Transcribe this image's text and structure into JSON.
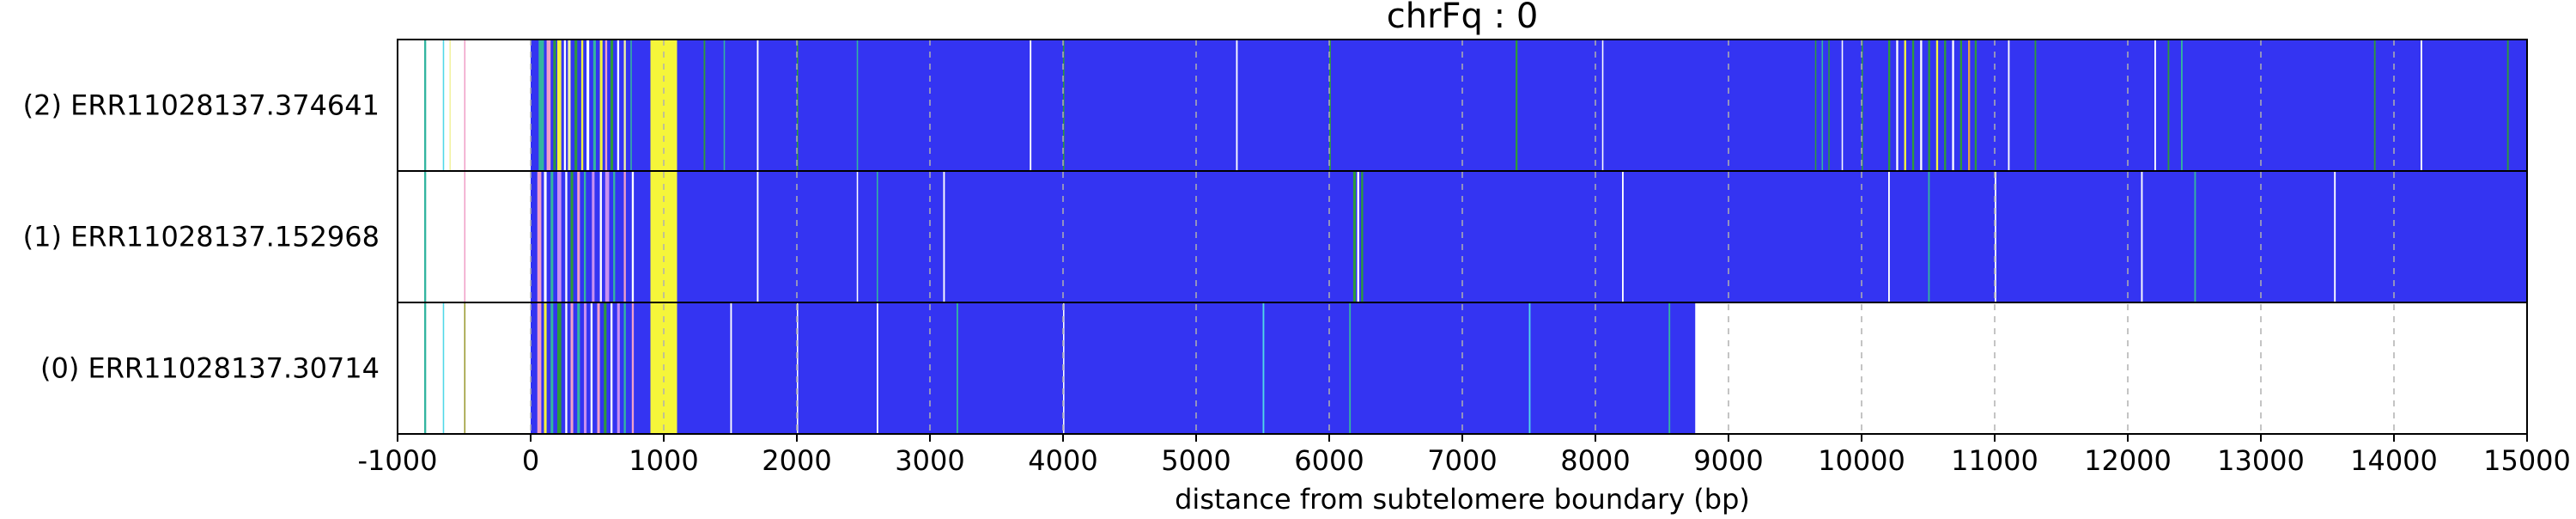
{
  "chart_data": {
    "type": "heatmap",
    "title": "chrFq : 0",
    "xlabel": "distance from subtelomere boundary (bp)",
    "ylabel": "",
    "xlim": [
      -1000,
      15000
    ],
    "xticks": [
      -1000,
      0,
      1000,
      2000,
      3000,
      4000,
      5000,
      6000,
      7000,
      8000,
      9000,
      10000,
      11000,
      12000,
      13000,
      14000,
      15000
    ],
    "vertical_gridlines": true,
    "colors": {
      "main": "#3434f2",
      "main_dark": "#2b2bd0",
      "white": "#ffffff",
      "yellow": "#f5f53a",
      "light_yellow": "#f2f2a0",
      "green": "#2e9a3a",
      "teal": "#33b5a0",
      "cyan": "#4fd8e8",
      "pink": "#f0a0c8",
      "violet": "#c890f0",
      "orange": "#e8a040",
      "olive": "#9a9a30",
      "grid": "#b0b0b0"
    },
    "reads": [
      {
        "label": "(2) ERR11028137.374641",
        "start": 0,
        "end": 15000,
        "segments": [
          {
            "start": -800,
            "end": -785,
            "color": "teal"
          },
          {
            "start": -660,
            "end": -650,
            "color": "cyan"
          },
          {
            "start": -610,
            "end": -600,
            "color": "light_yellow"
          },
          {
            "start": -500,
            "end": -490,
            "color": "pink"
          },
          {
            "start": 60,
            "end": 100,
            "color": "teal"
          },
          {
            "start": 120,
            "end": 150,
            "color": "pink"
          },
          {
            "start": 170,
            "end": 190,
            "color": "green"
          },
          {
            "start": 200,
            "end": 230,
            "color": "yellow"
          },
          {
            "start": 250,
            "end": 265,
            "color": "white"
          },
          {
            "start": 280,
            "end": 300,
            "color": "light_yellow"
          },
          {
            "start": 330,
            "end": 350,
            "color": "green"
          },
          {
            "start": 380,
            "end": 395,
            "color": "yellow"
          },
          {
            "start": 420,
            "end": 440,
            "color": "white"
          },
          {
            "start": 470,
            "end": 490,
            "color": "teal"
          },
          {
            "start": 520,
            "end": 540,
            "color": "yellow"
          },
          {
            "start": 560,
            "end": 575,
            "color": "pink"
          },
          {
            "start": 600,
            "end": 620,
            "color": "green"
          },
          {
            "start": 650,
            "end": 665,
            "color": "white"
          },
          {
            "start": 700,
            "end": 715,
            "color": "light_yellow"
          },
          {
            "start": 750,
            "end": 760,
            "color": "teal"
          },
          {
            "start": 900,
            "end": 1100,
            "color": "yellow"
          },
          {
            "start": 1300,
            "end": 1312,
            "color": "green"
          },
          {
            "start": 1450,
            "end": 1460,
            "color": "teal"
          },
          {
            "start": 1700,
            "end": 1712,
            "color": "white"
          },
          {
            "start": 2000,
            "end": 2010,
            "color": "green"
          },
          {
            "start": 2450,
            "end": 2460,
            "color": "teal"
          },
          {
            "start": 3750,
            "end": 3762,
            "color": "white"
          },
          {
            "start": 4000,
            "end": 4010,
            "color": "green"
          },
          {
            "start": 5300,
            "end": 5312,
            "color": "white"
          },
          {
            "start": 6000,
            "end": 6012,
            "color": "green"
          },
          {
            "start": 7400,
            "end": 7415,
            "color": "green"
          },
          {
            "start": 8050,
            "end": 8060,
            "color": "white"
          },
          {
            "start": 9650,
            "end": 9660,
            "color": "green"
          },
          {
            "start": 9700,
            "end": 9710,
            "color": "teal"
          },
          {
            "start": 9750,
            "end": 9760,
            "color": "green"
          },
          {
            "start": 9850,
            "end": 9860,
            "color": "white"
          },
          {
            "start": 10000,
            "end": 10010,
            "color": "green"
          },
          {
            "start": 10200,
            "end": 10215,
            "color": "green"
          },
          {
            "start": 10260,
            "end": 10275,
            "color": "white"
          },
          {
            "start": 10320,
            "end": 10335,
            "color": "yellow"
          },
          {
            "start": 10380,
            "end": 10395,
            "color": "green"
          },
          {
            "start": 10440,
            "end": 10455,
            "color": "white"
          },
          {
            "start": 10500,
            "end": 10515,
            "color": "green"
          },
          {
            "start": 10560,
            "end": 10575,
            "color": "yellow"
          },
          {
            "start": 10620,
            "end": 10635,
            "color": "green"
          },
          {
            "start": 10680,
            "end": 10695,
            "color": "white"
          },
          {
            "start": 10740,
            "end": 10755,
            "color": "green"
          },
          {
            "start": 10800,
            "end": 10815,
            "color": "orange"
          },
          {
            "start": 10850,
            "end": 10865,
            "color": "green"
          },
          {
            "start": 11100,
            "end": 11112,
            "color": "white"
          },
          {
            "start": 11300,
            "end": 11312,
            "color": "green"
          },
          {
            "start": 12200,
            "end": 12212,
            "color": "white"
          },
          {
            "start": 12300,
            "end": 12312,
            "color": "green"
          },
          {
            "start": 12400,
            "end": 12412,
            "color": "teal"
          },
          {
            "start": 13850,
            "end": 13862,
            "color": "green"
          },
          {
            "start": 14200,
            "end": 14212,
            "color": "white"
          },
          {
            "start": 14850,
            "end": 14862,
            "color": "green"
          }
        ]
      },
      {
        "label": "(1) ERR11028137.152968",
        "start": 0,
        "end": 15000,
        "segments": [
          {
            "start": -800,
            "end": -785,
            "color": "teal"
          },
          {
            "start": -500,
            "end": -490,
            "color": "pink"
          },
          {
            "start": 50,
            "end": 80,
            "color": "pink"
          },
          {
            "start": 100,
            "end": 120,
            "color": "white"
          },
          {
            "start": 150,
            "end": 170,
            "color": "teal"
          },
          {
            "start": 200,
            "end": 230,
            "color": "violet"
          },
          {
            "start": 260,
            "end": 275,
            "color": "white"
          },
          {
            "start": 300,
            "end": 320,
            "color": "green"
          },
          {
            "start": 350,
            "end": 370,
            "color": "pink"
          },
          {
            "start": 400,
            "end": 415,
            "color": "teal"
          },
          {
            "start": 460,
            "end": 480,
            "color": "violet"
          },
          {
            "start": 520,
            "end": 535,
            "color": "white"
          },
          {
            "start": 560,
            "end": 590,
            "color": "violet"
          },
          {
            "start": 620,
            "end": 635,
            "color": "teal"
          },
          {
            "start": 700,
            "end": 715,
            "color": "pink"
          },
          {
            "start": 760,
            "end": 775,
            "color": "white"
          },
          {
            "start": 900,
            "end": 1100,
            "color": "yellow"
          },
          {
            "start": 1700,
            "end": 1712,
            "color": "white"
          },
          {
            "start": 2450,
            "end": 2460,
            "color": "white"
          },
          {
            "start": 2600,
            "end": 2610,
            "color": "teal"
          },
          {
            "start": 3100,
            "end": 3112,
            "color": "white"
          },
          {
            "start": 6180,
            "end": 6200,
            "color": "green"
          },
          {
            "start": 6210,
            "end": 6225,
            "color": "white"
          },
          {
            "start": 6240,
            "end": 6255,
            "color": "green"
          },
          {
            "start": 8200,
            "end": 8212,
            "color": "white"
          },
          {
            "start": 10200,
            "end": 10212,
            "color": "white"
          },
          {
            "start": 10500,
            "end": 10512,
            "color": "teal"
          },
          {
            "start": 11000,
            "end": 11012,
            "color": "white"
          },
          {
            "start": 12100,
            "end": 12112,
            "color": "white"
          },
          {
            "start": 12500,
            "end": 12512,
            "color": "teal"
          },
          {
            "start": 13550,
            "end": 13562,
            "color": "white"
          }
        ]
      },
      {
        "label": "(0) ERR11028137.30714",
        "start": 0,
        "end": 8750,
        "segments": [
          {
            "start": -800,
            "end": -785,
            "color": "teal"
          },
          {
            "start": -660,
            "end": -650,
            "color": "cyan"
          },
          {
            "start": -500,
            "end": -490,
            "color": "olive"
          },
          {
            "start": 50,
            "end": 80,
            "color": "pink"
          },
          {
            "start": 100,
            "end": 120,
            "color": "yellow"
          },
          {
            "start": 150,
            "end": 170,
            "color": "teal"
          },
          {
            "start": 200,
            "end": 230,
            "color": "green"
          },
          {
            "start": 260,
            "end": 275,
            "color": "white"
          },
          {
            "start": 300,
            "end": 320,
            "color": "pink"
          },
          {
            "start": 350,
            "end": 370,
            "color": "teal"
          },
          {
            "start": 400,
            "end": 420,
            "color": "violet"
          },
          {
            "start": 450,
            "end": 465,
            "color": "white"
          },
          {
            "start": 500,
            "end": 520,
            "color": "pink"
          },
          {
            "start": 550,
            "end": 570,
            "color": "green"
          },
          {
            "start": 600,
            "end": 615,
            "color": "white"
          },
          {
            "start": 650,
            "end": 670,
            "color": "violet"
          },
          {
            "start": 700,
            "end": 715,
            "color": "teal"
          },
          {
            "start": 760,
            "end": 775,
            "color": "pink"
          },
          {
            "start": 900,
            "end": 1100,
            "color": "yellow"
          },
          {
            "start": 1500,
            "end": 1512,
            "color": "white"
          },
          {
            "start": 2000,
            "end": 2010,
            "color": "white"
          },
          {
            "start": 2600,
            "end": 2612,
            "color": "white"
          },
          {
            "start": 3200,
            "end": 3212,
            "color": "teal"
          },
          {
            "start": 4000,
            "end": 4010,
            "color": "white"
          },
          {
            "start": 5500,
            "end": 5512,
            "color": "cyan"
          },
          {
            "start": 6150,
            "end": 6162,
            "color": "teal"
          },
          {
            "start": 7500,
            "end": 7512,
            "color": "cyan"
          },
          {
            "start": 8550,
            "end": 8562,
            "color": "teal"
          }
        ]
      }
    ]
  }
}
